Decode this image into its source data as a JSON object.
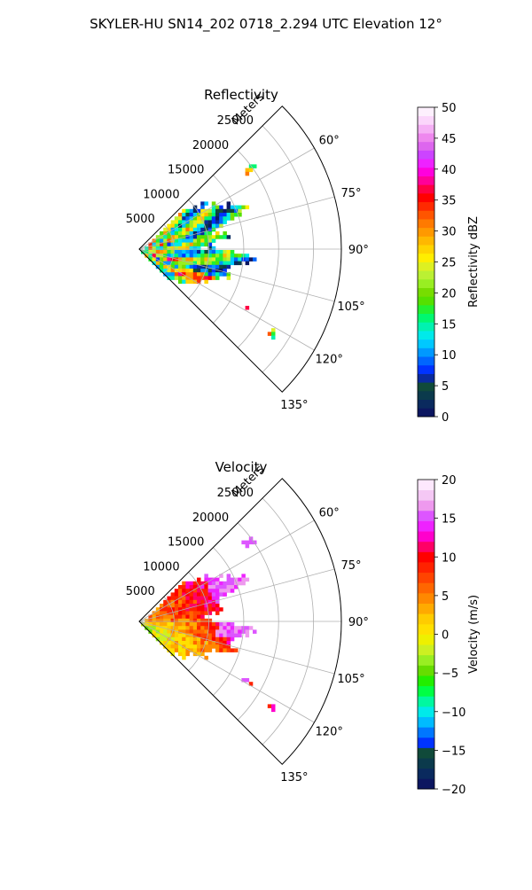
{
  "figure": {
    "suptitle": "SKYLER-HU  SN14_202  0718_2.294 UTC Elevation 12°"
  },
  "chart_data": [
    {
      "type": "heatmap",
      "projection": "polar-sector",
      "title": "Reflectivity",
      "radial_label": "Meters",
      "radial_ticks": [
        "5000",
        "10000",
        "15000",
        "20000",
        "25000"
      ],
      "radial_tick_values": [
        5000,
        10000,
        15000,
        20000,
        25000
      ],
      "rmax": 29000,
      "theta_range_deg": [
        45,
        135
      ],
      "theta_ticks": [
        "60°",
        "75°",
        "90°",
        "105°",
        "120°",
        "135°"
      ],
      "theta_tick_values": [
        60,
        75,
        90,
        105,
        120,
        135
      ],
      "grid": true,
      "colorbar": {
        "label": "Reflectivity dBZ",
        "vmin": 0,
        "vmax": 50,
        "ticks": [
          "0",
          "5",
          "10",
          "15",
          "20",
          "25",
          "30",
          "35",
          "40",
          "45",
          "50"
        ],
        "colors": [
          "#0c1660",
          "#0a2a5e",
          "#0b3a4c",
          "#104a3a",
          "#0a2a9e",
          "#0033ff",
          "#0066ff",
          "#0099ff",
          "#00c8ff",
          "#00eaea",
          "#00f2b0",
          "#00f870",
          "#22f030",
          "#55e000",
          "#77dd00",
          "#99ee22",
          "#bbf033",
          "#ddf022",
          "#ffee00",
          "#ffd400",
          "#ffb800",
          "#ff9900",
          "#ff7a00",
          "#ff5500",
          "#ff2a00",
          "#ff0000",
          "#ff0044",
          "#ff0099",
          "#ff00dd",
          "#ee22ff",
          "#cc44ff",
          "#dd66ee",
          "#ee88ee",
          "#f5b0f5",
          "#fbd6fb",
          "#fdf0fd"
        ]
      },
      "field_levels": [
        14,
        22,
        28,
        33,
        38,
        43
      ]
    },
    {
      "type": "heatmap",
      "projection": "polar-sector",
      "title": "Velocity",
      "radial_label": "Meters",
      "radial_ticks": [
        "5000",
        "10000",
        "15000",
        "20000",
        "25000"
      ],
      "radial_tick_values": [
        5000,
        10000,
        15000,
        20000,
        25000
      ],
      "rmax": 29000,
      "theta_range_deg": [
        45,
        135
      ],
      "theta_ticks": [
        "60°",
        "75°",
        "90°",
        "105°",
        "120°",
        "135°"
      ],
      "theta_tick_values": [
        60,
        75,
        90,
        105,
        120,
        135
      ],
      "grid": true,
      "colorbar": {
        "label": "Velocity (m/s)",
        "vmin": -20,
        "vmax": 20,
        "ticks": [
          "−20",
          "−15",
          "−10",
          "−5",
          "0",
          "5",
          "10",
          "15",
          "20"
        ],
        "colors": [
          "#0c1660",
          "#0a2a5e",
          "#0b3a4c",
          "#104a3a",
          "#0033ff",
          "#0077ff",
          "#00bbff",
          "#00eaea",
          "#00f8a0",
          "#00ff44",
          "#22ee00",
          "#66dd00",
          "#99ee22",
          "#ccf022",
          "#eef000",
          "#ffe000",
          "#ffcc00",
          "#ffaa00",
          "#ff8800",
          "#ff6600",
          "#ff4400",
          "#ff2200",
          "#ff0000",
          "#ff0066",
          "#ff00cc",
          "#ee22ff",
          "#dd55ff",
          "#ee99ee",
          "#f5c8f5",
          "#fde8fd"
        ]
      },
      "field_levels": [
        -4,
        0,
        2,
        4,
        7,
        10,
        14
      ]
    }
  ]
}
